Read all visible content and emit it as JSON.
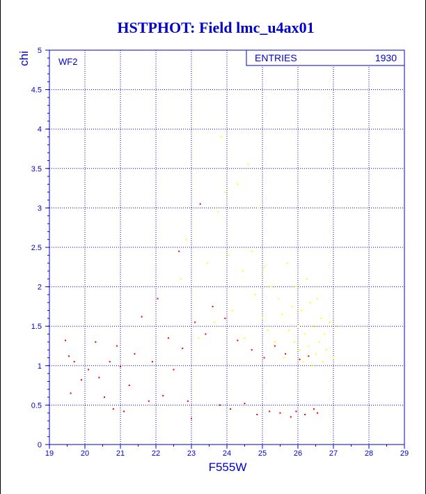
{
  "title": "HSTPHOT: Field lmc_u4ax01",
  "panel_label": "WF2",
  "stats": {
    "label": "ENTRIES",
    "value": "1930"
  },
  "colors": {
    "axis": "#0000cc",
    "grid": "#0000cc",
    "title": "#0000cc",
    "series_low": "#e00000",
    "series_high": "#ffff00"
  },
  "chart_data": {
    "type": "scatter",
    "title": "HSTPHOT: Field lmc_u4ax01",
    "xlabel": "F555W",
    "ylabel": "chi",
    "xlim": [
      19,
      29
    ],
    "ylim": [
      0,
      5
    ],
    "x_ticks": [
      "19",
      "20",
      "21",
      "22",
      "23",
      "24",
      "25",
      "26",
      "27",
      "28",
      "29"
    ],
    "y_ticks": [
      "0",
      "0.5",
      "1",
      "1.5",
      "2",
      "2.5",
      "3",
      "3.5",
      "4",
      "4.5",
      "5"
    ],
    "grid": true,
    "entries": 1930,
    "series": [
      {
        "color": "#e00000",
        "points": [
          [
            19.45,
            1.32
          ],
          [
            19.55,
            1.12
          ],
          [
            19.6,
            0.65
          ],
          [
            19.7,
            1.05
          ],
          [
            19.9,
            0.82
          ],
          [
            20.1,
            0.95
          ],
          [
            20.3,
            1.3
          ],
          [
            20.4,
            0.85
          ],
          [
            20.55,
            0.6
          ],
          [
            20.7,
            1.05
          ],
          [
            20.8,
            0.45
          ],
          [
            20.9,
            1.25
          ],
          [
            21.0,
            0.99
          ],
          [
            21.1,
            0.42
          ],
          [
            21.25,
            0.75
          ],
          [
            21.4,
            1.15
          ],
          [
            21.6,
            1.62
          ],
          [
            21.8,
            0.55
          ],
          [
            21.9,
            1.05
          ],
          [
            22.05,
            1.85
          ],
          [
            22.2,
            0.62
          ],
          [
            22.35,
            1.35
          ],
          [
            22.5,
            0.95
          ],
          [
            22.65,
            2.45
          ],
          [
            22.75,
            1.22
          ],
          [
            22.9,
            0.55
          ],
          [
            23.0,
            0.33
          ],
          [
            23.1,
            1.55
          ],
          [
            23.25,
            3.05
          ],
          [
            23.4,
            1.4
          ],
          [
            23.6,
            1.75
          ],
          [
            23.8,
            0.5
          ],
          [
            23.95,
            1.6
          ],
          [
            24.1,
            0.45
          ],
          [
            24.3,
            1.32
          ],
          [
            24.5,
            0.52
          ],
          [
            24.7,
            1.2
          ],
          [
            24.85,
            0.38
          ],
          [
            25.05,
            1.1
          ],
          [
            25.2,
            0.42
          ],
          [
            25.35,
            1.25
          ],
          [
            25.5,
            0.4
          ],
          [
            25.65,
            1.15
          ],
          [
            25.8,
            0.35
          ],
          [
            25.95,
            0.42
          ],
          [
            26.05,
            1.08
          ],
          [
            26.2,
            0.38
          ],
          [
            26.3,
            1.12
          ],
          [
            26.45,
            0.45
          ],
          [
            26.55,
            0.4
          ]
        ]
      },
      {
        "color": "#ffff00",
        "points": [
          [
            22.7,
            2.1
          ],
          [
            22.85,
            2.6
          ],
          [
            23.2,
            1.35
          ],
          [
            23.45,
            2.3
          ],
          [
            23.65,
            1.55
          ],
          [
            23.75,
            2.95
          ],
          [
            23.85,
            3.9
          ],
          [
            23.95,
            3.2
          ],
          [
            24.05,
            2.4
          ],
          [
            24.15,
            1.7
          ],
          [
            24.3,
            3.3
          ],
          [
            24.45,
            2.2
          ],
          [
            24.5,
            1.35
          ],
          [
            24.6,
            3.55
          ],
          [
            24.7,
            2.45
          ],
          [
            24.8,
            1.9
          ],
          [
            24.9,
            3.0
          ],
          [
            25.0,
            1.6
          ],
          [
            25.05,
            2.25
          ],
          [
            25.15,
            1.45
          ],
          [
            25.25,
            2.0
          ],
          [
            25.35,
            1.3
          ],
          [
            25.45,
            1.85
          ],
          [
            25.55,
            1.65
          ],
          [
            25.6,
            1.1
          ],
          [
            25.7,
            2.3
          ],
          [
            25.75,
            1.45
          ],
          [
            25.85,
            1.75
          ],
          [
            25.9,
            1.3
          ],
          [
            25.95,
            2.0
          ],
          [
            26.0,
            1.5
          ],
          [
            26.05,
            1.2
          ],
          [
            26.1,
            1.7
          ],
          [
            26.15,
            1.05
          ],
          [
            26.2,
            1.4
          ],
          [
            26.25,
            2.1
          ],
          [
            26.3,
            1.25
          ],
          [
            26.35,
            1.8
          ],
          [
            26.4,
            1.0
          ],
          [
            26.45,
            1.5
          ],
          [
            26.5,
            1.15
          ],
          [
            26.55,
            1.85
          ],
          [
            26.6,
            1.3
          ],
          [
            26.65,
            1.6
          ],
          [
            26.7,
            1.05
          ],
          [
            26.75,
            1.4
          ],
          [
            26.8,
            1.2
          ],
          [
            26.9,
            1.55
          ],
          [
            27.0,
            1.1
          ],
          [
            27.1,
            1.5
          ]
        ]
      }
    ]
  }
}
